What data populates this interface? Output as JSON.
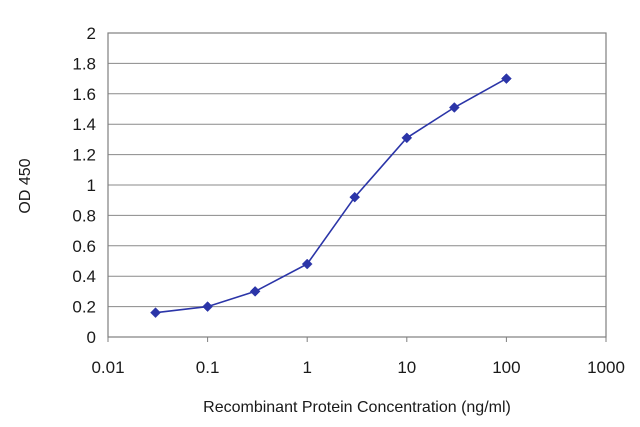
{
  "chart_data": {
    "type": "line",
    "title": "",
    "xlabel": "Recombinant Protein Concentration (ng/ml)",
    "ylabel": "OD 450",
    "xscale": "log",
    "xlim": [
      0.01,
      1000
    ],
    "ylim": [
      0,
      2
    ],
    "grid": "horizontal",
    "legend": "none",
    "x_ticks": [
      "0.01",
      "0.1",
      "1",
      "10",
      "100",
      "1000"
    ],
    "y_ticks": [
      "0",
      "0.2",
      "0.4",
      "0.6",
      "0.8",
      "1",
      "1.2",
      "1.4",
      "1.6",
      "1.8",
      "2"
    ],
    "series": [
      {
        "x": [
          0.03,
          0.1,
          0.3,
          1,
          3,
          10,
          30,
          100
        ],
        "y": [
          0.16,
          0.2,
          0.3,
          0.48,
          0.92,
          1.31,
          1.51,
          1.7
        ],
        "color": "#2b35a8",
        "marker": "diamond"
      }
    ]
  }
}
